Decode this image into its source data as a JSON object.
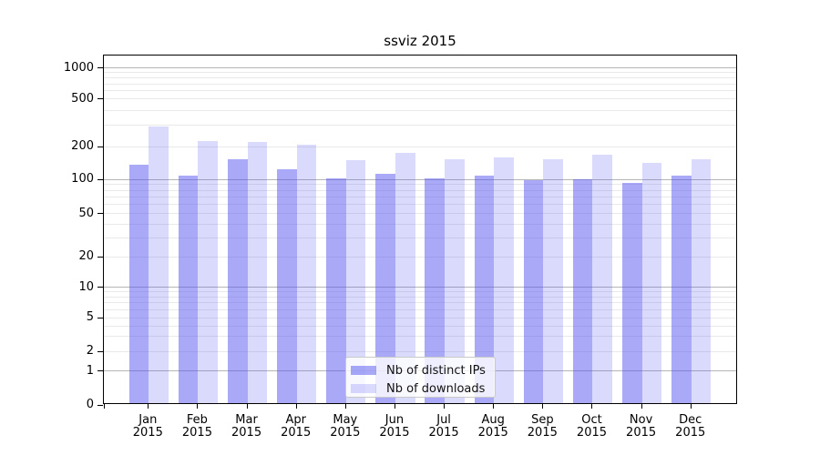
{
  "chart_data": {
    "type": "bar",
    "title": "ssviz 2015",
    "categories": [
      "Jan 2015",
      "Feb 2015",
      "Mar 2015",
      "Apr 2015",
      "May 2015",
      "Jun 2015",
      "Jul 2015",
      "Aug 2015",
      "Sep 2015",
      "Oct 2015",
      "Nov 2015",
      "Dec 2015"
    ],
    "series": [
      {
        "name": "Nb of distinct IPs",
        "color": "rgba(80,80,240,0.49)",
        "values": [
          135,
          107,
          153,
          123,
          101,
          111,
          101,
          108,
          97,
          100,
          93,
          107
        ]
      },
      {
        "name": "Nb of downloads",
        "color": "rgba(80,80,240,0.21)",
        "values": [
          290,
          220,
          217,
          205,
          148,
          172,
          153,
          157,
          153,
          166,
          140,
          153
        ]
      }
    ],
    "yaxis": {
      "scale": "log-like (0 baseline, log spacing above 1)",
      "tick_labels": [
        "0",
        "1",
        "2",
        "5",
        "10",
        "20",
        "50",
        "100",
        "200",
        "500",
        "1000"
      ],
      "range": [
        0,
        1300
      ],
      "grid": "horizontal major + minor"
    },
    "xlabel": "",
    "ylabel": "",
    "legend": {
      "entries": [
        "Nb of distinct IPs",
        "Nb of downloads"
      ],
      "position": "inside bottom-center"
    }
  },
  "colors": {
    "major_grid": "#b5b5b5",
    "minor_grid": "#e9e9e9",
    "spine": "#000000",
    "background": "#ffffff"
  }
}
